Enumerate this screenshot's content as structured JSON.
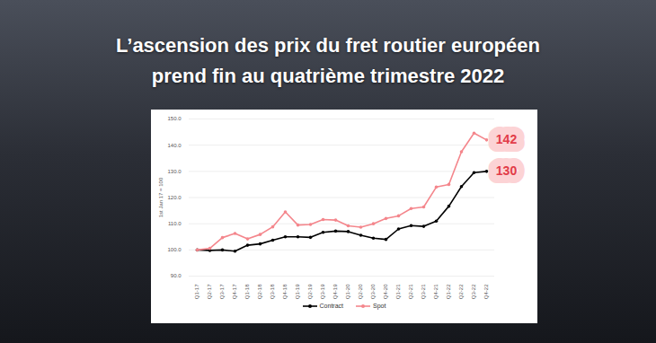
{
  "chart_data": {
    "type": "line",
    "title": "L’ascension des prix du fret routier européen\nprend fin au quatrième trimestre 2022",
    "y_label": "1st Jan 17 = 100",
    "categories": [
      "Q1-17",
      "Q2-17",
      "Q3-17",
      "Q4-17",
      "Q1-18",
      "Q2-18",
      "Q3-18",
      "Q4-18",
      "Q1-19",
      "Q2-19",
      "Q3-19",
      "Q4-19",
      "Q1-20",
      "Q2-20",
      "Q3-20",
      "Q4-20",
      "Q1-21",
      "Q2-21",
      "Q3-21",
      "Q4-21",
      "Q1-22",
      "Q2-22",
      "Q3-22",
      "Q4-22"
    ],
    "series": [
      {
        "name": "Contract",
        "color": "#000000",
        "marker": "circle",
        "values": [
          100,
          99.8,
          100,
          99.5,
          101.8,
          102.3,
          103.7,
          105,
          105,
          104.8,
          106.7,
          107.2,
          107,
          105.6,
          104.5,
          104,
          108,
          109.3,
          109,
          111,
          116.7,
          124.2,
          129.5,
          130
        ]
      },
      {
        "name": "Spot",
        "color": "#f4868c",
        "marker": "circle",
        "values": [
          100,
          100.6,
          104.7,
          106.3,
          104.2,
          105.9,
          108.8,
          114.5,
          109.5,
          109.7,
          111.6,
          111.4,
          109.2,
          108.7,
          110,
          112,
          113,
          115.8,
          116.4,
          124,
          125,
          137.5,
          144.6,
          142
        ]
      }
    ],
    "ylim": [
      90,
      150
    ],
    "yticks": [
      {
        "value": 90,
        "label": "90.0"
      },
      {
        "value": 100,
        "label": "100.0"
      },
      {
        "value": 110,
        "label": "110.0"
      },
      {
        "value": 120,
        "label": "120.0"
      },
      {
        "value": 130,
        "label": "130.0"
      },
      {
        "value": 140,
        "label": "140.0"
      },
      {
        "value": 150,
        "label": "150.0"
      }
    ],
    "grid": true,
    "legend": "bottom",
    "annotations": [
      {
        "text": "142",
        "x": "Q4-22",
        "y": 142
      },
      {
        "text": "130",
        "x": "Q4-22",
        "y": 130
      }
    ]
  }
}
